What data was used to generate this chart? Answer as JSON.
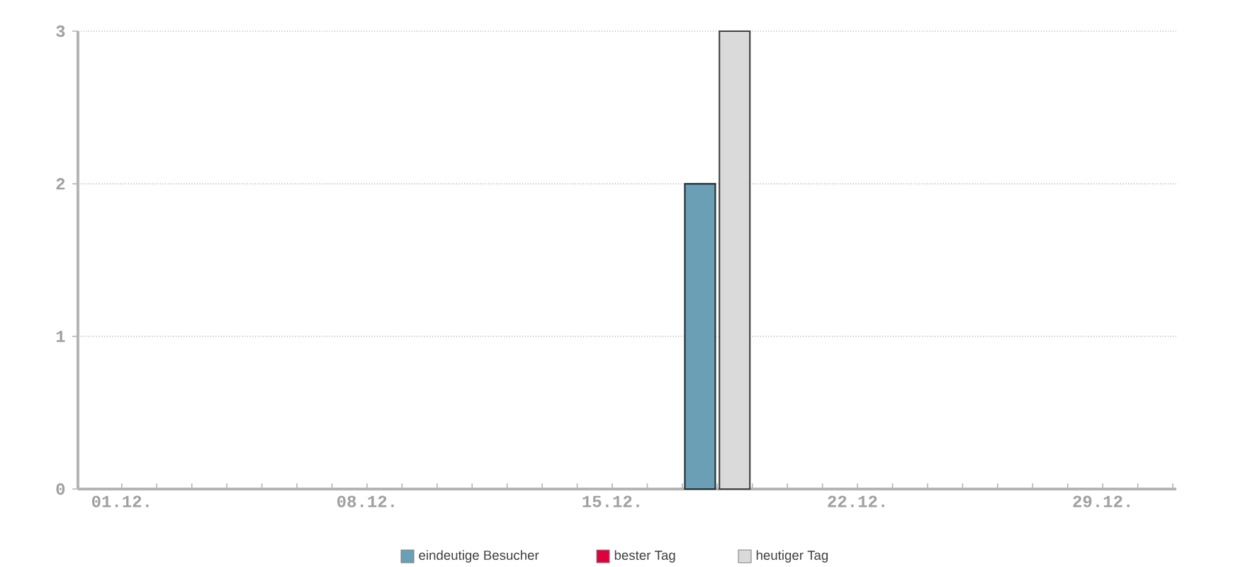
{
  "chart_data": {
    "type": "bar",
    "categories": [
      "01.12.",
      null,
      null,
      null,
      null,
      null,
      null,
      "08.12.",
      null,
      null,
      null,
      null,
      null,
      null,
      "15.12.",
      null,
      null,
      null,
      null,
      null,
      null,
      "22.12.",
      null,
      null,
      null,
      null,
      null,
      null,
      "29.12.",
      null,
      null
    ],
    "series": [
      {
        "name": "eindeutige Besucher",
        "color": "#6a9fb5",
        "values": [
          null,
          null,
          null,
          null,
          null,
          null,
          null,
          null,
          null,
          null,
          null,
          null,
          null,
          null,
          null,
          null,
          null,
          2,
          null,
          null,
          null,
          null,
          null,
          null,
          null,
          null,
          null,
          null,
          null,
          null,
          null
        ]
      },
      {
        "name": "bester Tag",
        "color": "#e0003c",
        "values": [
          null,
          null,
          null,
          null,
          null,
          null,
          null,
          null,
          null,
          null,
          null,
          null,
          null,
          null,
          null,
          null,
          null,
          null,
          null,
          null,
          null,
          null,
          null,
          null,
          null,
          null,
          null,
          null,
          null,
          null,
          null
        ]
      },
      {
        "name": "heutiger Tag",
        "color": "#dadada",
        "values": [
          null,
          null,
          null,
          null,
          null,
          null,
          null,
          null,
          null,
          null,
          null,
          null,
          null,
          null,
          null,
          null,
          null,
          3,
          null,
          null,
          null,
          null,
          null,
          null,
          null,
          null,
          null,
          null,
          null,
          null,
          null
        ]
      }
    ],
    "ylim": [
      0,
      3
    ],
    "yticks": [
      0,
      1,
      2,
      3
    ],
    "grid": "y",
    "legend": "bottom"
  }
}
